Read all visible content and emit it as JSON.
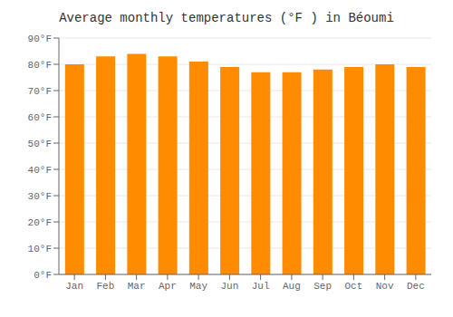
{
  "chart_data": {
    "type": "bar",
    "title": "Average monthly temperatures (°F ) in Béoumi",
    "categories": [
      "Jan",
      "Feb",
      "Mar",
      "Apr",
      "May",
      "Jun",
      "Jul",
      "Aug",
      "Sep",
      "Oct",
      "Nov",
      "Dec"
    ],
    "values": [
      80,
      83,
      84,
      83,
      81,
      79,
      77,
      77,
      78,
      79,
      80,
      79
    ],
    "color": "#FF8C00",
    "ylim": [
      0,
      90
    ],
    "yticks": [
      {
        "value": 0,
        "label": "0°F"
      },
      {
        "value": 10,
        "label": "10°F"
      },
      {
        "value": 20,
        "label": "20°F"
      },
      {
        "value": 30,
        "label": "30°F"
      },
      {
        "value": 40,
        "label": "40°F"
      },
      {
        "value": 50,
        "label": "50°F"
      },
      {
        "value": 60,
        "label": "60°F"
      },
      {
        "value": 70,
        "label": "70°F"
      },
      {
        "value": 80,
        "label": "80°F"
      },
      {
        "value": 90,
        "label": "90°F"
      }
    ],
    "grid": true
  }
}
